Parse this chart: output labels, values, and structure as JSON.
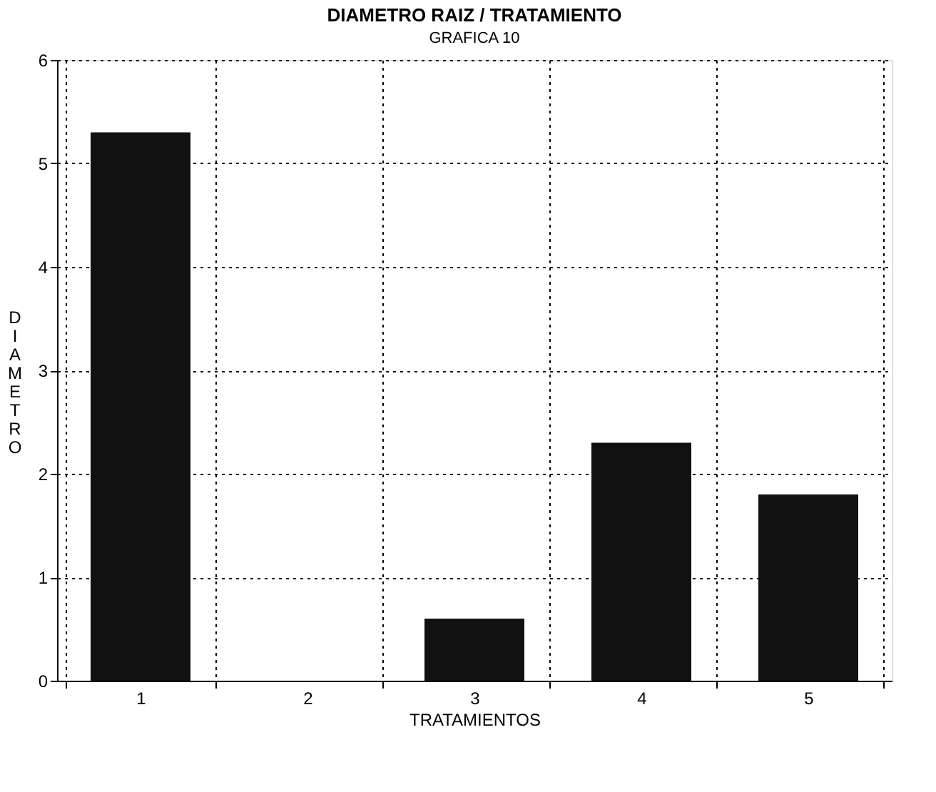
{
  "chart_data": {
    "type": "bar",
    "title": "DIAMETRO RAIZ / TRATAMIENTO",
    "subtitle": "GRAFICA 10",
    "xlabel": "TRATAMIENTOS",
    "ylabel": "DIAMETRO",
    "categories": [
      "1",
      "2",
      "3",
      "4",
      "5"
    ],
    "values": [
      5.3,
      0,
      0.6,
      2.3,
      1.8
    ],
    "color": "#111111",
    "ylim": [
      0,
      6
    ],
    "yticks": [
      0,
      1,
      2,
      3,
      4,
      5,
      6
    ],
    "grid": true
  }
}
